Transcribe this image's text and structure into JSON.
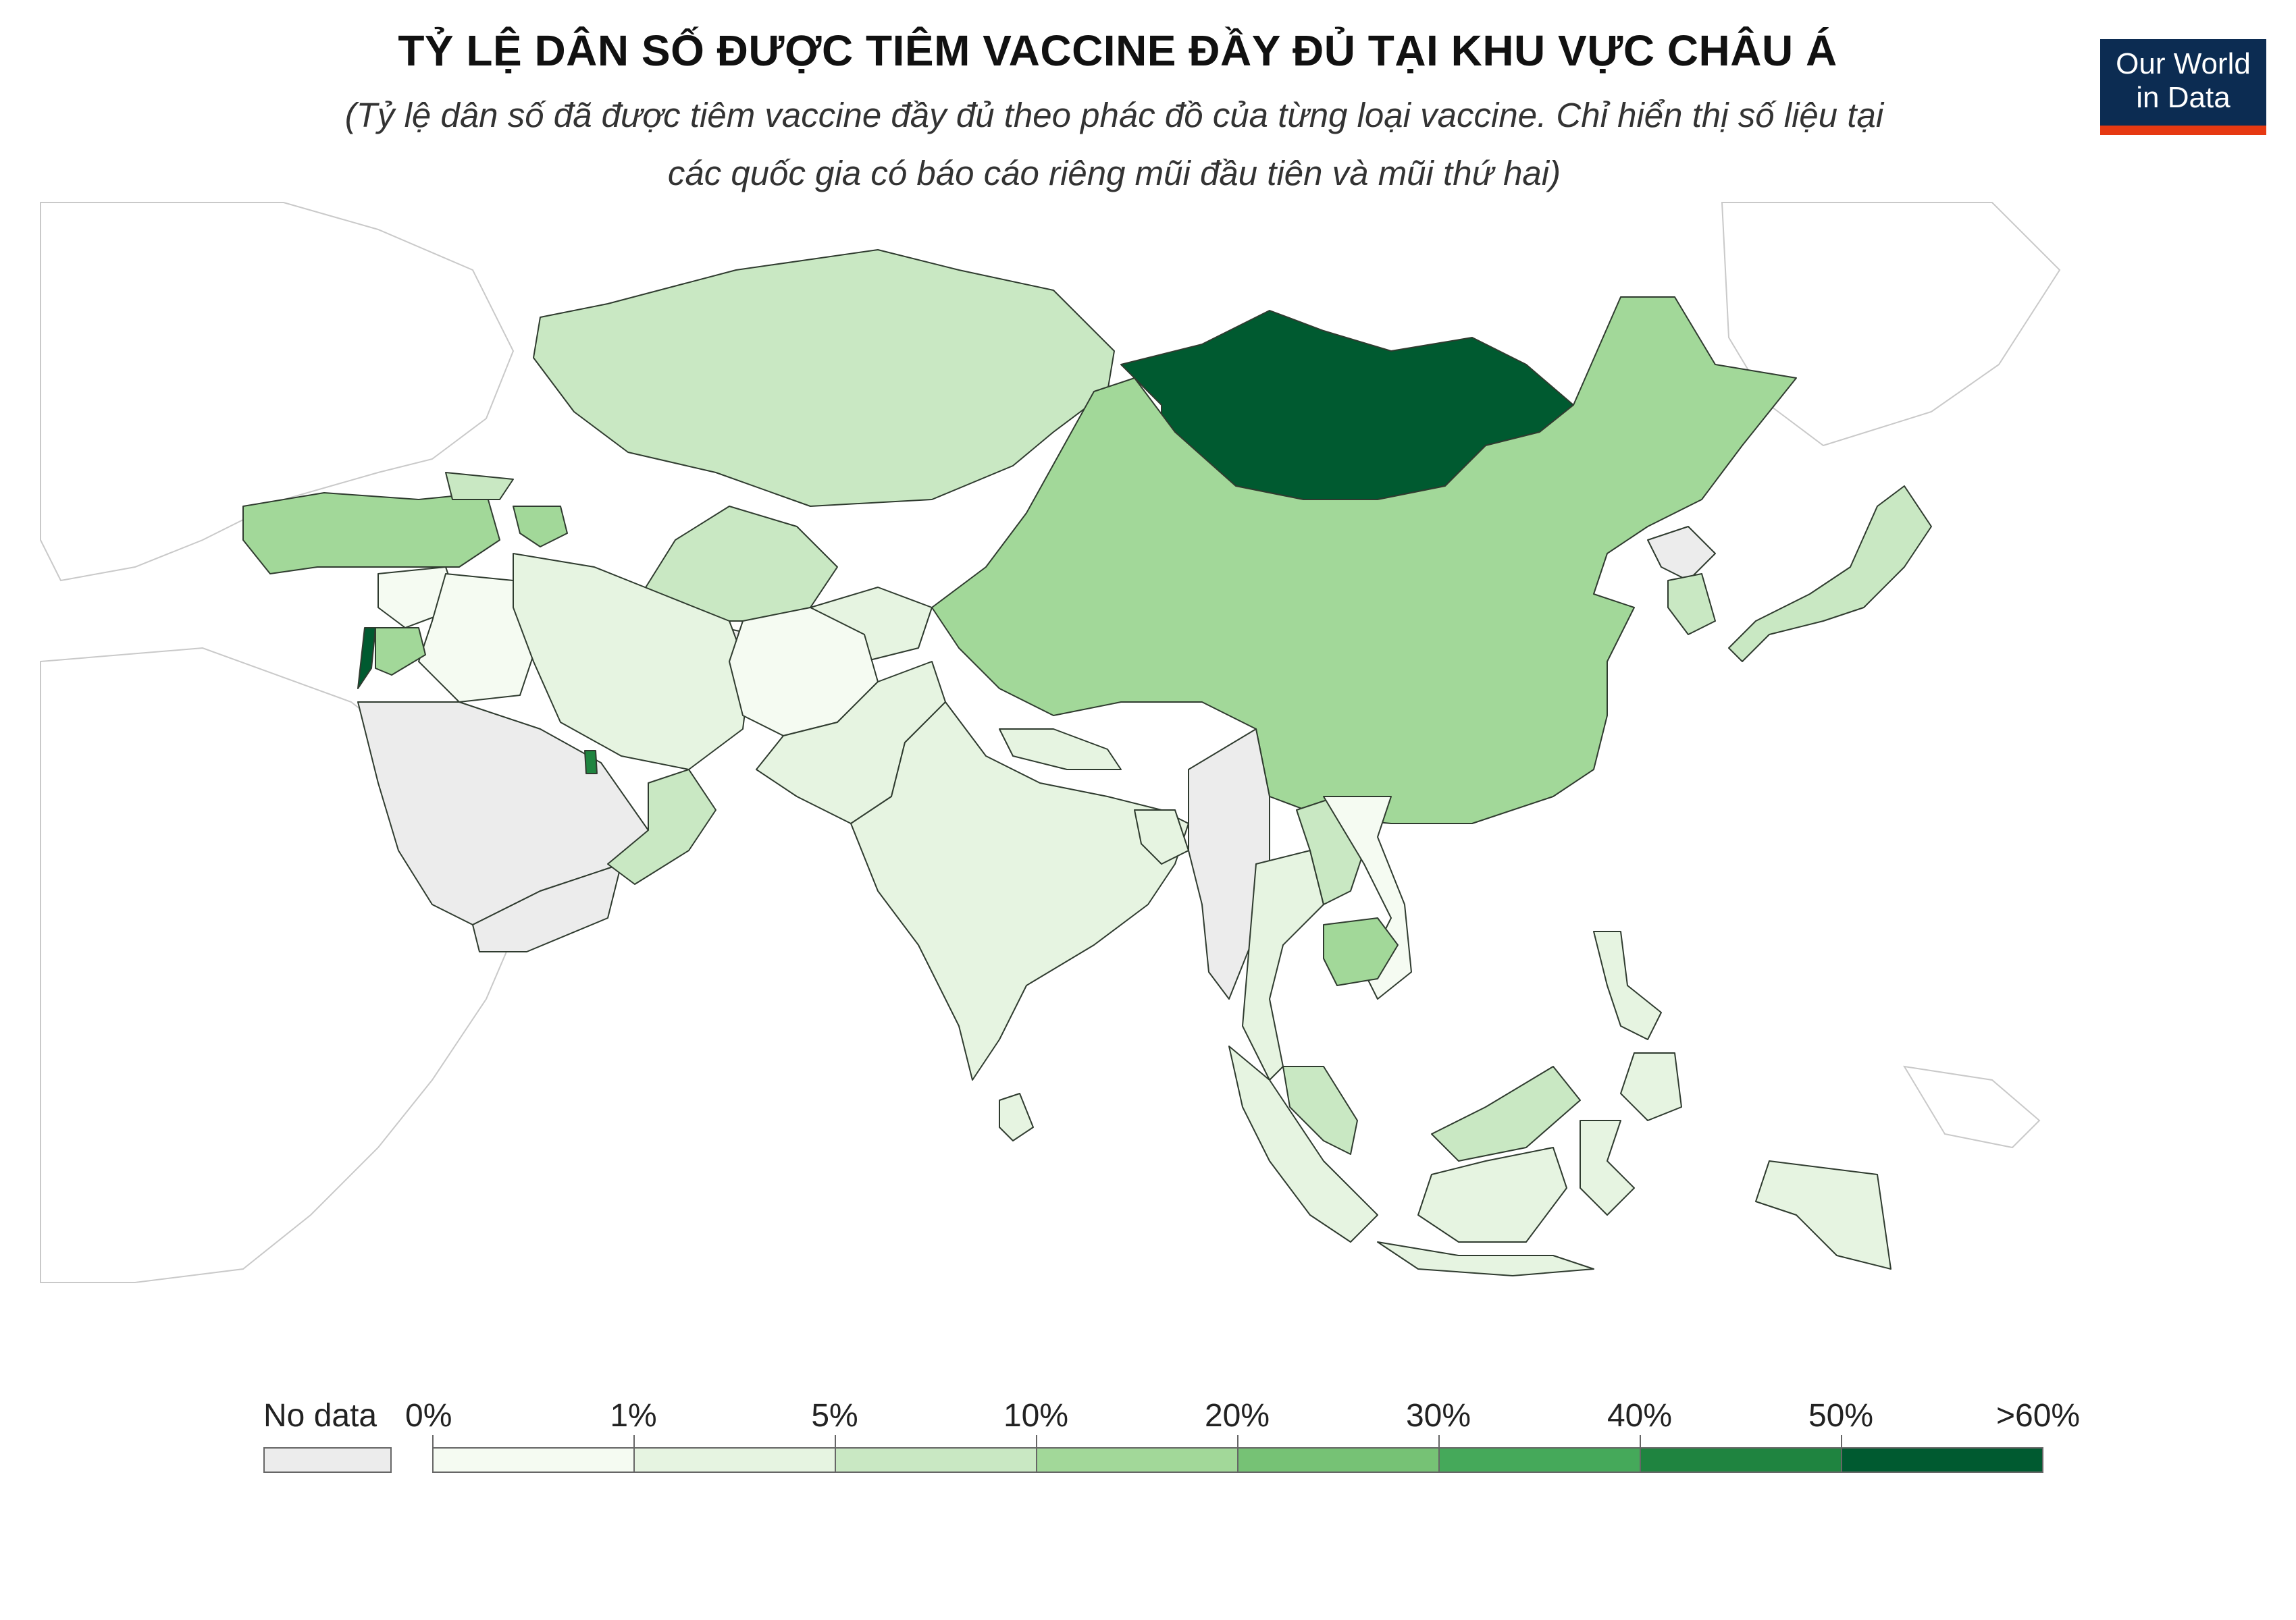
{
  "title": "TỶ LỆ DÂN SỐ ĐƯỢC TIÊM VACCINE ĐẦY ĐỦ TẠI KHU VỰC CHÂU Á",
  "subtitle_line1": "(Tỷ lệ dân số đã được tiêm vaccine đầy đủ theo phác đồ của từng loại vaccine. Chỉ hiển thị số liệu tại",
  "subtitle_line2": "các quốc gia có báo cáo riêng mũi đầu tiên và mũi thứ hai)",
  "logo": {
    "line1": "Our World",
    "line2": "in Data",
    "bg_color": "#0c2c52",
    "bar_color": "#e63912"
  },
  "legend": {
    "no_data_label": "No data",
    "no_data_color": "#ececec",
    "bins": [
      {
        "label": "0%",
        "color": "#f5fbf2"
      },
      {
        "label": "1%",
        "color": "#e6f4e1"
      },
      {
        "label": "5%",
        "color": "#c9e8c3"
      },
      {
        "label": "10%",
        "color": "#a2d899"
      },
      {
        "label": "20%",
        "color": "#76c275"
      },
      {
        "label": "30%",
        "color": "#45a95a"
      },
      {
        "label": "40%",
        "color": "#1f8440"
      },
      {
        "label": "50%",
        "color": "#005a30"
      }
    ],
    "end_label": ">60%"
  },
  "chart_data": {
    "type": "choropleth",
    "region": "Asia",
    "metric": "share of population fully vaccinated",
    "bins": [
      "0%",
      "1%",
      "5%",
      "10%",
      "20%",
      "30%",
      "40%",
      "50%",
      ">60%"
    ],
    "countries": [
      {
        "name": "Mongolia",
        "bin": ">60%",
        "color": "#005a30"
      },
      {
        "name": "Israel",
        "bin": ">60%",
        "color": "#005a30"
      },
      {
        "name": "Bahrain",
        "bin": "40-50%",
        "color": "#1f8440"
      },
      {
        "name": "China",
        "bin": "10-20%",
        "color": "#a2d899"
      },
      {
        "name": "Turkey",
        "bin": "10-20%",
        "color": "#a2d899"
      },
      {
        "name": "Cambodia",
        "bin": "10-20%",
        "color": "#a2d899"
      },
      {
        "name": "Azerbaijan",
        "bin": "10-20%",
        "color": "#a2d899"
      },
      {
        "name": "Jordan",
        "bin": "10-20%",
        "color": "#a2d899"
      },
      {
        "name": "Kazakhstan",
        "bin": "5-10%",
        "color": "#c9e8c3"
      },
      {
        "name": "Russia (Asian part)",
        "bin": "5-10%",
        "color": "#c9e8c3"
      },
      {
        "name": "Japan",
        "bin": "5-10%",
        "color": "#c9e8c3"
      },
      {
        "name": "South Korea",
        "bin": "5-10%",
        "color": "#c9e8c3"
      },
      {
        "name": "Malaysia",
        "bin": "5-10%",
        "color": "#c9e8c3"
      },
      {
        "name": "Laos",
        "bin": "5-10%",
        "color": "#c9e8c3"
      },
      {
        "name": "Oman",
        "bin": "5-10%",
        "color": "#c9e8c3"
      },
      {
        "name": "Georgia",
        "bin": "5-10%",
        "color": "#c9e8c3"
      },
      {
        "name": "India",
        "bin": "1-5%",
        "color": "#e6f4e1"
      },
      {
        "name": "Iran",
        "bin": "1-5%",
        "color": "#e6f4e1"
      },
      {
        "name": "Indonesia",
        "bin": "1-5%",
        "color": "#e6f4e1"
      },
      {
        "name": "Pakistan",
        "bin": "1-5%",
        "color": "#e6f4e1"
      },
      {
        "name": "Nepal",
        "bin": "1-5%",
        "color": "#e6f4e1"
      },
      {
        "name": "Bangladesh",
        "bin": "1-5%",
        "color": "#e6f4e1"
      },
      {
        "name": "Thailand",
        "bin": "1-5%",
        "color": "#e6f4e1"
      },
      {
        "name": "Philippines",
        "bin": "1-5%",
        "color": "#e6f4e1"
      },
      {
        "name": "Uzbekistan",
        "bin": "1-5%",
        "color": "#e6f4e1"
      },
      {
        "name": "Sri Lanka",
        "bin": "1-5%",
        "color": "#e6f4e1"
      },
      {
        "name": "Afghanistan",
        "bin": "0-1%",
        "color": "#f5fbf2"
      },
      {
        "name": "Iraq",
        "bin": "0-1%",
        "color": "#f5fbf2"
      },
      {
        "name": "Syria",
        "bin": "0-1%",
        "color": "#f5fbf2"
      },
      {
        "name": "Vietnam",
        "bin": "0-1%",
        "color": "#f5fbf2"
      },
      {
        "name": "Saudi Arabia",
        "bin": "No data",
        "color": "#ececec"
      },
      {
        "name": "Turkmenistan",
        "bin": "No data",
        "color": "#ececec"
      },
      {
        "name": "Myanmar",
        "bin": "No data",
        "color": "#ececec"
      },
      {
        "name": "North Korea",
        "bin": "No data",
        "color": "#ececec"
      },
      {
        "name": "Yemen",
        "bin": "No data",
        "color": "#ececec"
      }
    ]
  }
}
